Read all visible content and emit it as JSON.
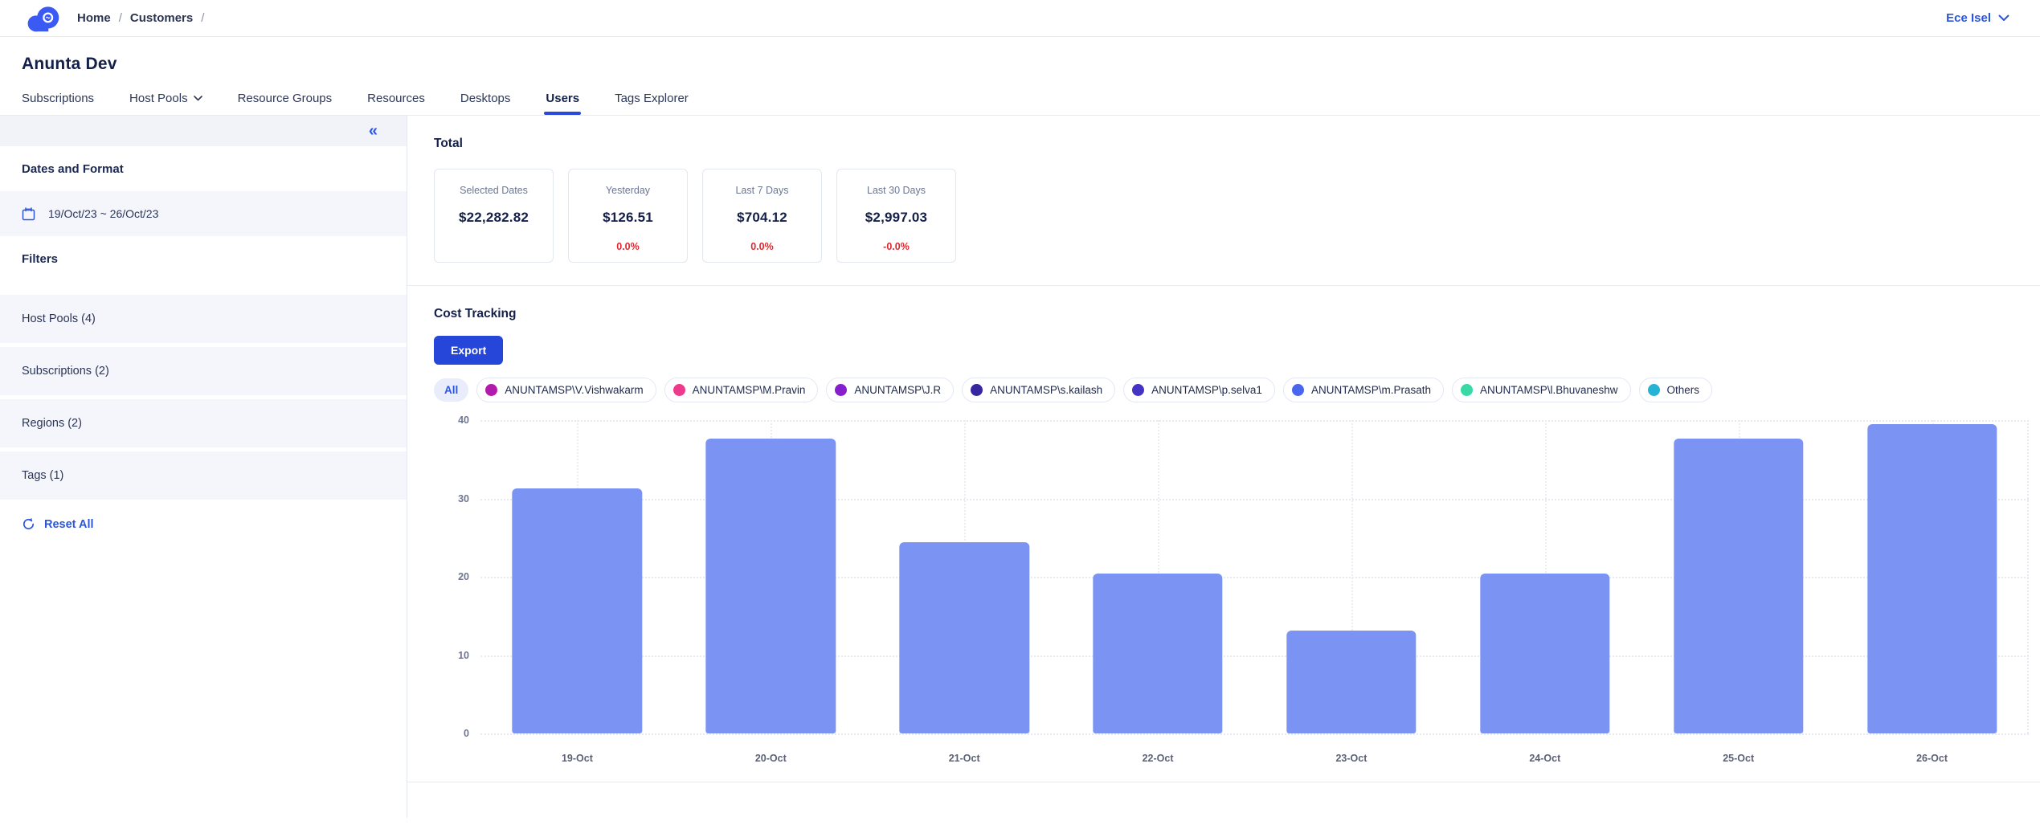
{
  "header": {
    "logo": "cloud-logo",
    "breadcrumb": {
      "items": [
        "Home",
        "Customers"
      ],
      "separator": "/"
    },
    "user_name": "Ece Isel"
  },
  "page": {
    "title": "Anunta Dev"
  },
  "tabs": [
    {
      "label": "Subscriptions",
      "active": false
    },
    {
      "label": "Host Pools",
      "active": false,
      "has_dropdown": true
    },
    {
      "label": "Resource Groups",
      "active": false
    },
    {
      "label": "Resources",
      "active": false
    },
    {
      "label": "Desktops",
      "active": false
    },
    {
      "label": "Users",
      "active": true
    },
    {
      "label": "Tags Explorer",
      "active": false
    }
  ],
  "sidebar": {
    "collapse_icon": "chevrons-left-icon",
    "dates_heading": "Dates and Format",
    "date_range": "19/Oct/23 ~ 26/Oct/23",
    "filters_heading": "Filters",
    "filters": [
      {
        "label": "Host Pools (4)"
      },
      {
        "label": "Subscriptions (2)"
      },
      {
        "label": "Regions (2)"
      },
      {
        "label": "Tags (1)"
      }
    ],
    "reset_label": "Reset All"
  },
  "total": {
    "heading": "Total",
    "cards": [
      {
        "label": "Selected Dates",
        "amount": "$22,282.82",
        "change": ""
      },
      {
        "label": "Yesterday",
        "amount": "$126.51",
        "change": "0.0%"
      },
      {
        "label": "Last 7 Days",
        "amount": "$704.12",
        "change": "0.0%"
      },
      {
        "label": "Last 30 Days",
        "amount": "$2,997.03",
        "change": "-0.0%"
      }
    ]
  },
  "cost_tracking": {
    "heading": "Cost Tracking",
    "export_label": "Export",
    "legend": {
      "all_label": "All",
      "series": [
        {
          "label": "ANUNTAMSP\\V.Vishwakarm",
          "color": "#b11bab"
        },
        {
          "label": "ANUNTAMSP\\M.Pravin",
          "color": "#ee3a8c"
        },
        {
          "label": "ANUNTAMSP\\J.R",
          "color": "#8520cc"
        },
        {
          "label": "ANUNTAMSP\\s.kailash",
          "color": "#36269f"
        },
        {
          "label": "ANUNTAMSP\\p.selva1",
          "color": "#4534c4"
        },
        {
          "label": "ANUNTAMSP\\m.Prasath",
          "color": "#4a66ef"
        },
        {
          "label": "ANUNTAMSP\\l.Bhuvaneshw",
          "color": "#38d9a4"
        },
        {
          "label": "Others",
          "color": "#25b3d6"
        }
      ]
    }
  },
  "chart_data": {
    "type": "bar",
    "title": "Cost Tracking",
    "categories": [
      "19-Oct",
      "20-Oct",
      "21-Oct",
      "22-Oct",
      "23-Oct",
      "24-Oct",
      "25-Oct",
      "26-Oct"
    ],
    "values": [
      31.3,
      37.6,
      24.4,
      20.4,
      13.1,
      20.4,
      37.6,
      39.5
    ],
    "ylim": [
      0,
      40
    ],
    "yticks": [
      "40",
      "30",
      "20",
      "10",
      "0"
    ],
    "xlabel": "",
    "ylabel": "",
    "bar_color": "#7b94f3",
    "grid": "dotted",
    "legend_position": "top"
  },
  "colors": {
    "brand_blue": "#2546d8",
    "link_blue": "#2c55dd",
    "bar_blue": "#7b94f3",
    "negative_red": "#e0262e"
  }
}
